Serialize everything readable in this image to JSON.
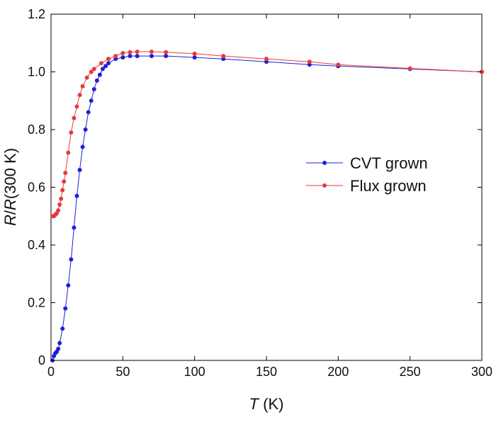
{
  "chart_data": {
    "type": "line",
    "xlabel": {
      "italic": "T",
      "rest": " (K)"
    },
    "ylabel": {
      "italic1": "R",
      "mid": "/",
      "italic2": "R",
      "rest": "(300 K)"
    },
    "xlim": [
      0,
      300
    ],
    "ylim": [
      0,
      1.2
    ],
    "x_ticks": [
      0,
      50,
      100,
      150,
      200,
      250,
      300
    ],
    "x_tick_labels": [
      "0",
      "50",
      "100",
      "150",
      "200",
      "250",
      "300"
    ],
    "y_ticks": [
      0,
      0.2,
      0.4,
      0.6,
      0.8,
      1.0,
      1.2
    ],
    "y_tick_labels": [
      "0",
      "0.2",
      "0.4",
      "0.6",
      "0.8",
      "1.0",
      "1.2"
    ],
    "grid": false,
    "legend_position": "center-right",
    "series": [
      {
        "name": "CVT grown",
        "color": "#1f1fd6",
        "x": [
          1,
          2,
          3,
          4,
          5,
          6,
          8,
          10,
          12,
          14,
          16,
          18,
          20,
          22,
          24,
          26,
          28,
          30,
          32,
          34,
          36,
          38,
          40,
          45,
          50,
          55,
          60,
          70,
          80,
          100,
          120,
          150,
          180,
          200,
          250,
          300
        ],
        "y": [
          0.0,
          0.015,
          0.025,
          0.03,
          0.04,
          0.06,
          0.11,
          0.18,
          0.26,
          0.35,
          0.46,
          0.57,
          0.66,
          0.74,
          0.8,
          0.86,
          0.9,
          0.94,
          0.97,
          0.99,
          1.01,
          1.02,
          1.03,
          1.045,
          1.05,
          1.055,
          1.055,
          1.055,
          1.055,
          1.05,
          1.045,
          1.035,
          1.025,
          1.02,
          1.01,
          1.0
        ]
      },
      {
        "name": "Flux grown",
        "color": "#e83a3a",
        "x": [
          1,
          2,
          3,
          4,
          5,
          6,
          7,
          8,
          9,
          10,
          12,
          14,
          16,
          18,
          20,
          22,
          25,
          28,
          30,
          35,
          40,
          45,
          50,
          55,
          60,
          70,
          80,
          100,
          120,
          150,
          180,
          200,
          250,
          300
        ],
        "y": [
          0.5,
          0.5,
          0.505,
          0.51,
          0.52,
          0.54,
          0.56,
          0.59,
          0.62,
          0.65,
          0.72,
          0.79,
          0.84,
          0.88,
          0.92,
          0.95,
          0.98,
          1.0,
          1.01,
          1.03,
          1.045,
          1.055,
          1.065,
          1.068,
          1.07,
          1.07,
          1.068,
          1.063,
          1.055,
          1.045,
          1.035,
          1.025,
          1.012,
          1.0
        ]
      }
    ]
  }
}
